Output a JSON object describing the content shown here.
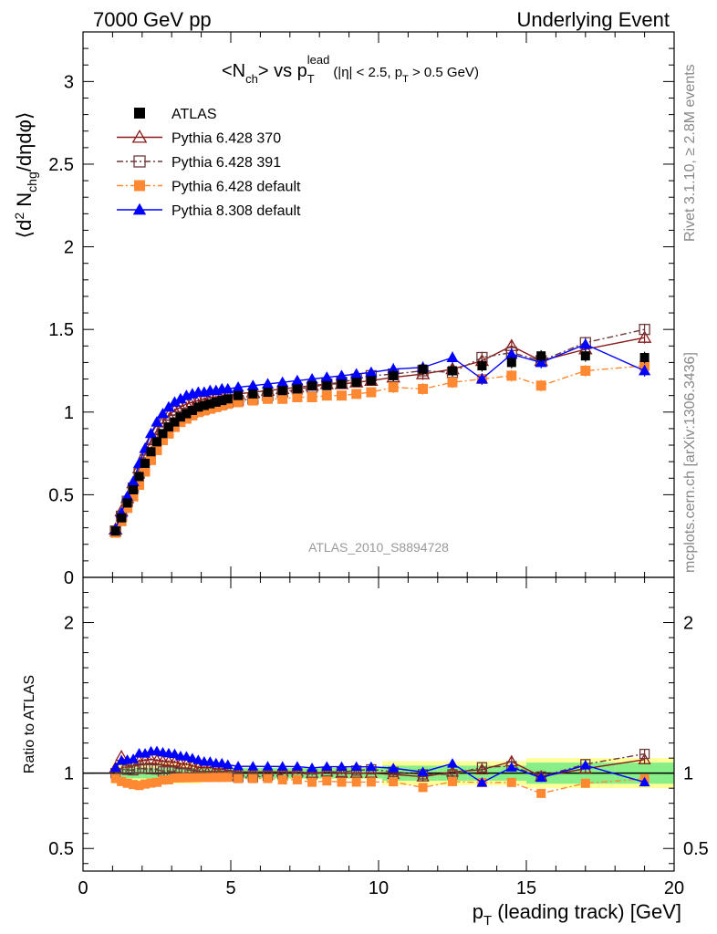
{
  "header": {
    "left": "7000 GeV pp",
    "right": "Underlying Event"
  },
  "plot_title": {
    "main": "<N",
    "ch_sub": "ch",
    "mid": "> vs p",
    "t_sub": "T",
    "lead_sup": "lead",
    "cuts_1": "(|η| < 2.5, p",
    "cuts_t_sub": "T",
    "cuts_2": " > 0.5 GeV)"
  },
  "side_labels": {
    "rivet": "Rivet 3.1.10, ≥ 2.8M events",
    "mcplots": "mcplots.cern.ch [arXiv:1306.3436]"
  },
  "analysis_id": "ATLAS_2010_S8894728",
  "y_title_main": {
    "p1": "⟨d",
    "sup2": "2",
    "p2": " N",
    "chg_sub": "chg",
    "p3": "/dηdφ⟩"
  },
  "y_title_ratio": "Ratio to ATLAS",
  "x_title": {
    "p": "p",
    "t_sub": "T",
    "rest": " (leading track) [GeV]"
  },
  "legend": [
    {
      "label": "ATLAS",
      "color": "#000000",
      "marker": "square-filled",
      "line": "none"
    },
    {
      "label": "Pythia 6.428 370",
      "color": "#8b1a1a",
      "marker": "triangle-open",
      "line": "solid"
    },
    {
      "label": "Pythia 6.428 391",
      "color": "#6b3a3a",
      "marker": "square-open",
      "line": "dashdot"
    },
    {
      "label": "Pythia 6.428 default",
      "color": "#ff8833",
      "marker": "square-filled",
      "line": "dashdot"
    },
    {
      "label": "Pythia 8.308 default",
      "color": "#0000ff",
      "marker": "triangle-filled",
      "line": "solid"
    }
  ],
  "chart_data": {
    "type": "scatter",
    "x_range": [
      0,
      20
    ],
    "y_range_main": [
      0,
      3.3
    ],
    "y_range_ratio": [
      0.35,
      2.3
    ],
    "x_ticks": [
      "0",
      "5",
      "10",
      "15",
      "20"
    ],
    "y_ticks_main": [
      "0",
      "0.5",
      "1",
      "1.5",
      "2",
      "2.5",
      "3"
    ],
    "y_ticks_ratio": [
      "0.5",
      "1",
      "2"
    ],
    "x": [
      1.1,
      1.3,
      1.5,
      1.7,
      1.9,
      2.1,
      2.3,
      2.5,
      2.7,
      2.9,
      3.1,
      3.3,
      3.5,
      3.7,
      3.9,
      4.1,
      4.3,
      4.5,
      4.7,
      4.9,
      5.25,
      5.75,
      6.25,
      6.75,
      7.25,
      7.75,
      8.25,
      8.75,
      9.25,
      9.75,
      10.5,
      11.5,
      12.5,
      13.5,
      14.5,
      15.5,
      17.0,
      19.0
    ],
    "series": [
      {
        "name": "ATLAS",
        "values": [
          0.28,
          0.36,
          0.45,
          0.53,
          0.61,
          0.69,
          0.76,
          0.82,
          0.87,
          0.91,
          0.94,
          0.97,
          0.99,
          1.01,
          1.03,
          1.04,
          1.05,
          1.06,
          1.07,
          1.08,
          1.1,
          1.11,
          1.12,
          1.13,
          1.14,
          1.16,
          1.16,
          1.17,
          1.18,
          1.19,
          1.22,
          1.26,
          1.25,
          1.28,
          1.3,
          1.34,
          1.34,
          1.33
        ]
      },
      {
        "name": "Pythia 6.428 370",
        "values": [
          0.29,
          0.4,
          0.48,
          0.57,
          0.66,
          0.75,
          0.83,
          0.89,
          0.94,
          0.98,
          1.01,
          1.03,
          1.05,
          1.06,
          1.07,
          1.08,
          1.09,
          1.09,
          1.1,
          1.1,
          1.11,
          1.12,
          1.13,
          1.14,
          1.15,
          1.16,
          1.17,
          1.17,
          1.18,
          1.19,
          1.21,
          1.23,
          1.26,
          1.31,
          1.4,
          1.31,
          1.38,
          1.45
        ]
      },
      {
        "name": "Pythia 6.428 391",
        "values": [
          0.28,
          0.37,
          0.46,
          0.54,
          0.63,
          0.71,
          0.78,
          0.84,
          0.88,
          0.92,
          0.95,
          0.97,
          0.99,
          1.0,
          1.01,
          1.02,
          1.03,
          1.04,
          1.05,
          1.06,
          1.07,
          1.08,
          1.1,
          1.12,
          1.14,
          1.15,
          1.17,
          1.18,
          1.2,
          1.22,
          1.23,
          1.25,
          1.24,
          1.33,
          1.36,
          1.31,
          1.42,
          1.5
        ]
      },
      {
        "name": "Pythia 6.428 default",
        "values": [
          0.27,
          0.34,
          0.42,
          0.49,
          0.56,
          0.64,
          0.71,
          0.77,
          0.83,
          0.87,
          0.91,
          0.94,
          0.96,
          0.98,
          1.0,
          1.01,
          1.02,
          1.03,
          1.04,
          1.05,
          1.06,
          1.07,
          1.08,
          1.08,
          1.09,
          1.09,
          1.1,
          1.1,
          1.11,
          1.12,
          1.15,
          1.14,
          1.18,
          1.2,
          1.22,
          1.16,
          1.25,
          1.28
        ]
      },
      {
        "name": "Pythia 8.308 default",
        "values": [
          0.29,
          0.39,
          0.49,
          0.58,
          0.69,
          0.78,
          0.87,
          0.94,
          0.99,
          1.03,
          1.06,
          1.08,
          1.1,
          1.11,
          1.12,
          1.12,
          1.13,
          1.13,
          1.14,
          1.14,
          1.15,
          1.16,
          1.17,
          1.18,
          1.19,
          1.2,
          1.21,
          1.22,
          1.23,
          1.24,
          1.26,
          1.27,
          1.33,
          1.2,
          1.35,
          1.3,
          1.41,
          1.25
        ]
      }
    ]
  }
}
